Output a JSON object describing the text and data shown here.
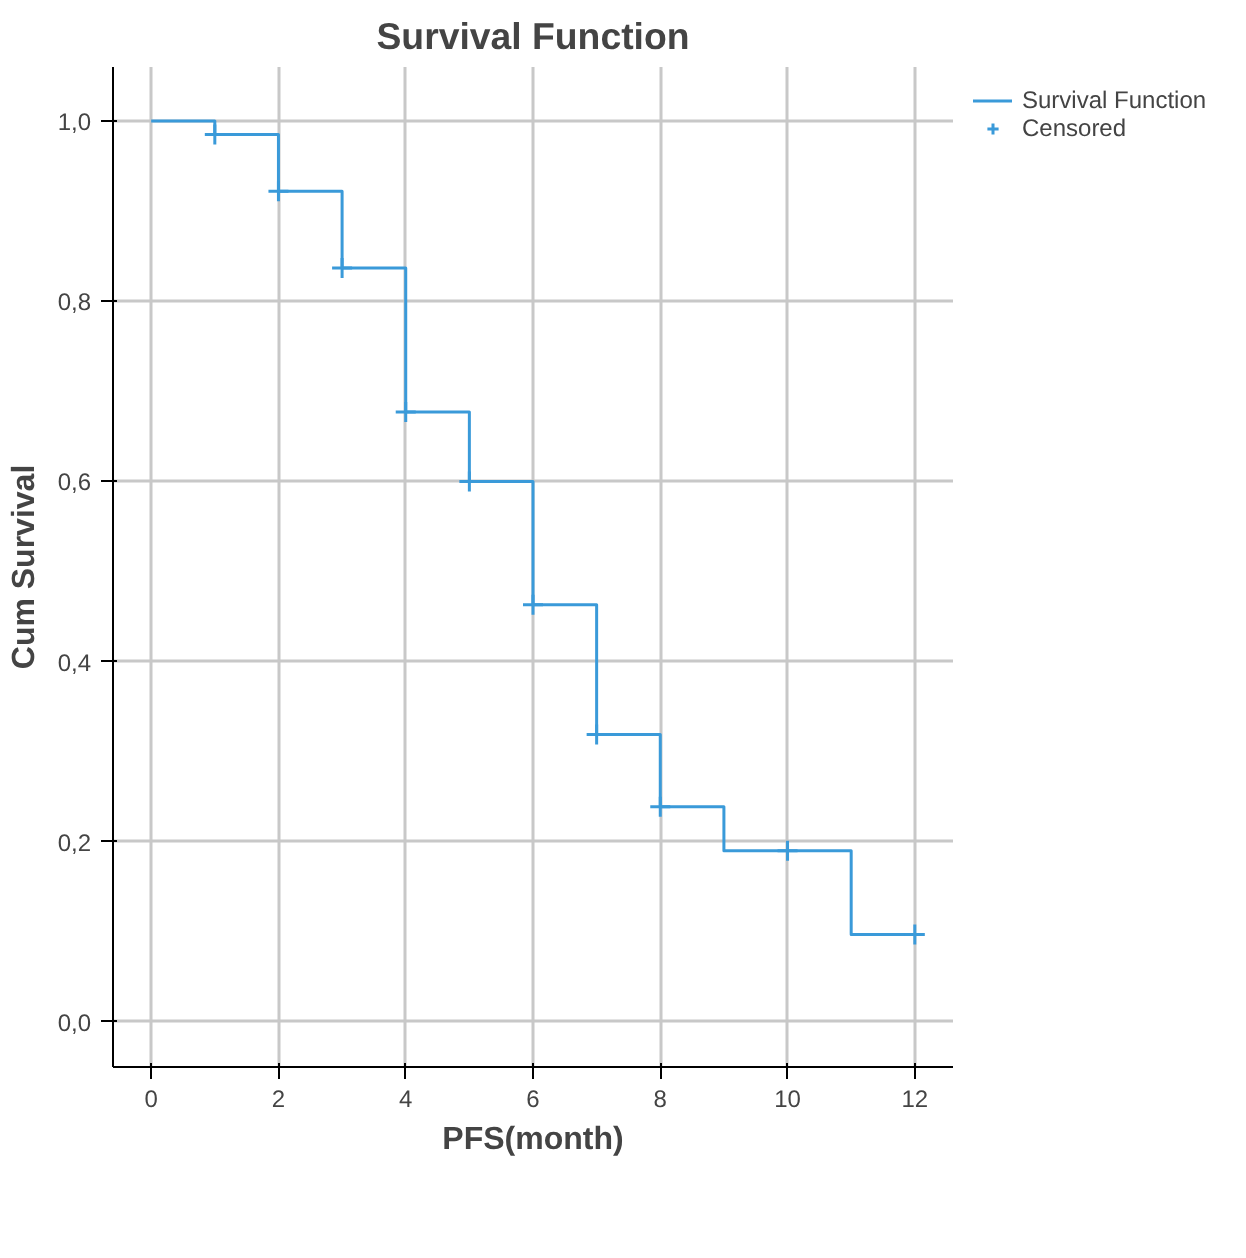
{
  "chart_data": {
    "type": "step",
    "title": "Survival Function",
    "xlabel": "PFS(month)",
    "ylabel": "Cum Survival",
    "xlim": [
      -0.6,
      12.6
    ],
    "ylim": [
      -0.05,
      1.06
    ],
    "xticks": [
      0,
      2,
      4,
      6,
      8,
      10,
      12
    ],
    "yticks": [
      {
        "value": 0,
        "label": "0,0"
      },
      {
        "value": 0.2,
        "label": "0,2"
      },
      {
        "value": 0.4,
        "label": "0,4"
      },
      {
        "value": 0.6,
        "label": "0,6"
      },
      {
        "value": 0.8,
        "label": "0,8"
      },
      {
        "value": 1.0,
        "label": "1,0"
      }
    ],
    "grid": true,
    "legend": "top right",
    "series": [
      {
        "name": "Survival Function",
        "color": "#3a9ad9",
        "x": [
          0,
          1,
          2,
          3,
          4,
          5,
          6,
          7,
          8,
          9,
          10,
          11,
          12
        ],
        "values": [
          1.0,
          0.985,
          0.922,
          0.837,
          0.677,
          0.6,
          0.463,
          0.319,
          0.239,
          0.19,
          0.19,
          0.097,
          0.097
        ]
      },
      {
        "name": "Censored",
        "type": "scatter",
        "marker": "cross",
        "color": "#3a9ad9",
        "x": [
          1,
          2,
          3,
          4,
          5,
          6,
          7,
          8,
          10,
          12
        ],
        "values": [
          0.985,
          0.922,
          0.837,
          0.677,
          0.6,
          0.463,
          0.319,
          0.239,
          0.19,
          0.097
        ]
      }
    ]
  }
}
